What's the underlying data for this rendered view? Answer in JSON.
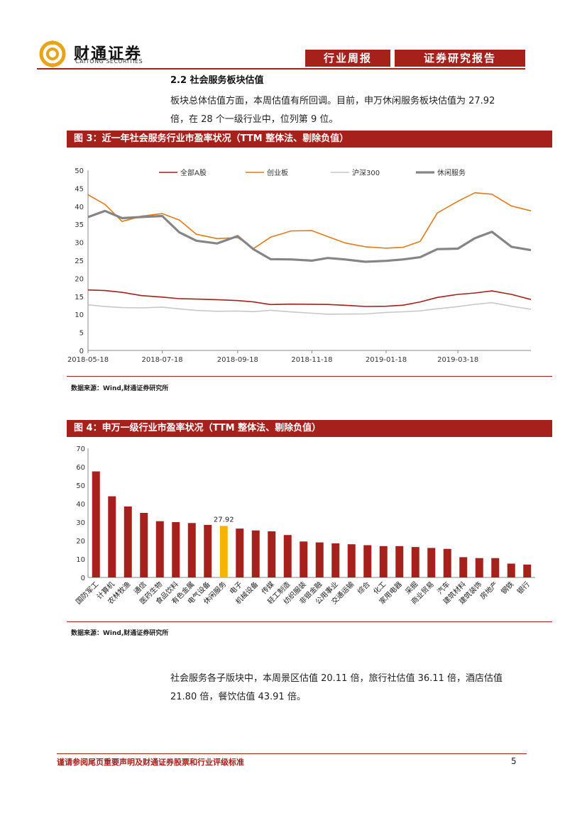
{
  "header": {
    "brand_cn": "财通证券",
    "brand_en": "CAITONG SECURITIES",
    "tag_weekly": "行业周报",
    "tag_report": "证券研究报告",
    "brand_color": "#a6201c"
  },
  "section": {
    "title": "2.2  社会服务板块估值",
    "para1_line1": "板块总体估值方面，本周估值有所回调。目前，申万休闲服务板块估值为 27.92",
    "para1_line2": "倍，在 28 个一级行业中，位列第 9 位。",
    "para2_line1": "社会服务各子版块中，本周景区估值 20.11 倍，旅行社估值 36.11 倍，酒店估值",
    "para2_line2": "21.80 倍，餐饮估值 43.91 倍。"
  },
  "figure3": {
    "title": "图 3：近一年社会服务行业市盈率状况（TTM 整体法、剔除负值）",
    "source": "数据来源：Wind,财通证券研究所"
  },
  "figure4": {
    "title": "图 4：申万一级行业市盈率状况（TTM 整体法、剔除负值）",
    "source": "数据来源：Wind,财通证券研究所"
  },
  "chart_data": [
    {
      "type": "line",
      "ylim": [
        0,
        50
      ],
      "yticks": [
        0,
        5,
        10,
        15,
        20,
        25,
        30,
        35,
        40,
        45,
        50
      ],
      "xtick_labels": [
        "2018-05-18",
        "2018-07-18",
        "2018-09-18",
        "2018-11-18",
        "2019-01-18",
        "2019-03-18"
      ],
      "legend_position": "top",
      "x": [
        "2018-05-18",
        "2018-06-01",
        "2018-06-15",
        "2018-07-01",
        "2018-07-18",
        "2018-08-01",
        "2018-08-15",
        "2018-09-01",
        "2018-09-18",
        "2018-10-01",
        "2018-10-15",
        "2018-11-01",
        "2018-11-18",
        "2018-12-01",
        "2018-12-15",
        "2019-01-01",
        "2019-01-18",
        "2019-02-01",
        "2019-02-15",
        "2019-03-01",
        "2019-03-18",
        "2019-04-01",
        "2019-04-15",
        "2019-05-01",
        "2019-05-17"
      ],
      "series": [
        {
          "name": "全部A股",
          "color": "#a6201c",
          "width": 1.6,
          "values": [
            16.8,
            16.4,
            15.9,
            15.2,
            15.0,
            14.6,
            14.3,
            13.9,
            13.6,
            13.4,
            12.9,
            13.1,
            12.9,
            12.6,
            12.3,
            12.1,
            12.4,
            12.8,
            13.6,
            14.6,
            15.3,
            15.8,
            16.6,
            15.8,
            14.3
          ]
        },
        {
          "name": "创业板",
          "color": "#e07b1a",
          "width": 1.6,
          "values": [
            43.0,
            40.5,
            36.0,
            37.5,
            38.0,
            36.0,
            32.0,
            31.0,
            31.5,
            28.5,
            31.5,
            33.0,
            33.0,
            31.5,
            30.0,
            29.0,
            28.5,
            28.5,
            30.0,
            38.0,
            41.5,
            44.0,
            43.5,
            40.0,
            38.5
          ]
        },
        {
          "name": "沪深300",
          "color": "#c8c8c8",
          "width": 1.6,
          "values": [
            12.9,
            12.4,
            11.9,
            11.6,
            11.8,
            11.5,
            11.3,
            11.1,
            11.0,
            10.6,
            10.9,
            10.6,
            10.5,
            10.3,
            10.2,
            10.0,
            10.3,
            10.6,
            11.1,
            11.8,
            12.3,
            12.7,
            13.0,
            12.1,
            11.5
          ]
        },
        {
          "name": "休闲服务",
          "color": "#858585",
          "width": 3.2,
          "values": [
            37.0,
            38.5,
            36.5,
            37.0,
            37.5,
            33.0,
            30.5,
            29.5,
            31.5,
            28.0,
            25.5,
            25.5,
            25.0,
            25.5,
            25.0,
            24.5,
            25.0,
            25.5,
            26.0,
            28.0,
            28.0,
            31.0,
            33.0,
            29.0,
            28.0
          ]
        }
      ]
    },
    {
      "type": "bar",
      "ylim": [
        0,
        70
      ],
      "yticks": [
        0,
        10,
        20,
        30,
        40,
        50,
        60,
        70
      ],
      "categories": [
        "国防军工",
        "计算机",
        "农林牧渔",
        "通信",
        "医药生物",
        "食品饮料",
        "有色金属",
        "电气设备",
        "休闲服务",
        "电子",
        "机械设备",
        "传媒",
        "轻工制造",
        "纺织服装",
        "非银金融",
        "公用事业",
        "交通运输",
        "综合",
        "化工",
        "家用电器",
        "采掘",
        "商业贸易",
        "汽车",
        "建筑材料",
        "建筑装饰",
        "房地产",
        "钢铁",
        "银行"
      ],
      "values": [
        57.5,
        44.0,
        38.5,
        35.0,
        30.5,
        30.0,
        29.5,
        28.5,
        27.92,
        26.5,
        25.5,
        25.0,
        23.0,
        19.5,
        19.0,
        18.5,
        18.0,
        17.5,
        17.0,
        17.0,
        16.5,
        16.0,
        15.5,
        11.0,
        10.5,
        10.5,
        7.5,
        7.0
      ],
      "highlight_index": 8,
      "highlight_label": "27.92",
      "bar_color": "#a6201c",
      "highlight_color": "#f5b400"
    }
  ],
  "footer": {
    "disclaimer": "谨请参阅尾页重要声明及财通证券股票和行业评级标准",
    "page": "5"
  }
}
